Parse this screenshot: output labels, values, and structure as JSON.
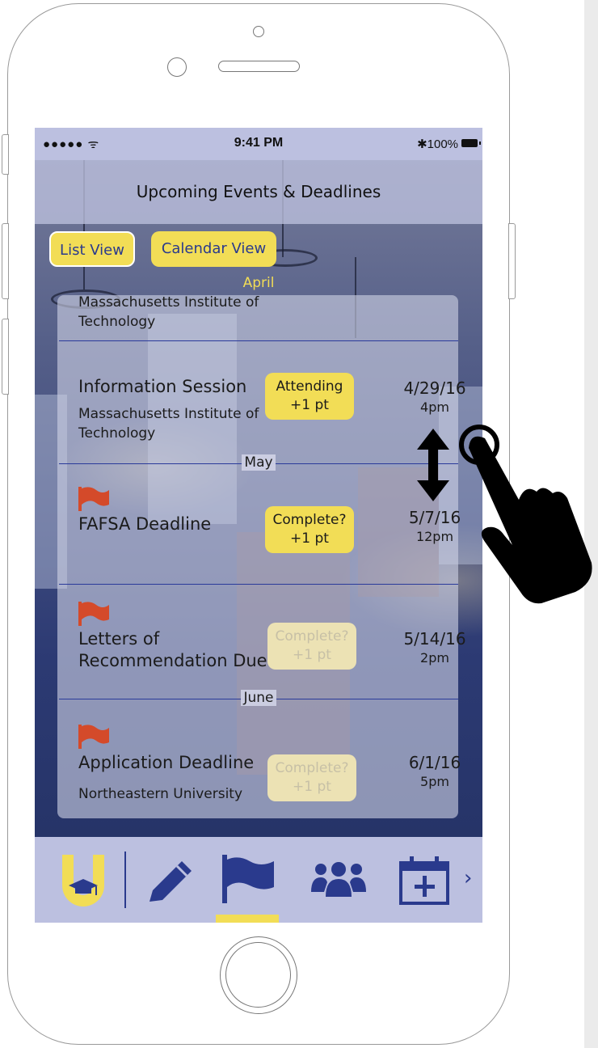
{
  "statusbar": {
    "signal": "●●●●● ᯤ",
    "time": "9:41 PM",
    "battery": "✱100%"
  },
  "header": {
    "title": "Upcoming Events & Deadlines"
  },
  "view_tabs": {
    "list": "List View",
    "calendar": "Calendar View"
  },
  "months": {
    "april": "April",
    "may": "May",
    "june": "June"
  },
  "events": [
    {
      "title": "",
      "university": "Massachusetts Institute of Technology",
      "action": "",
      "date": "",
      "time": ""
    },
    {
      "title": "Information Session",
      "university": "Massachusetts Institute of Technology",
      "action_line1": "Attending",
      "action_line2": "+1 pt",
      "date": "4/29/16",
      "time": "4pm"
    },
    {
      "title": "FAFSA Deadline",
      "university": "",
      "action_line1": "Complete?",
      "action_line2": "+1 pt",
      "date": "5/7/16",
      "time": "12pm"
    },
    {
      "title": "Letters of Recommendation Due",
      "university": "",
      "action_line1": "Complete?",
      "action_line2": "+1 pt",
      "date": "5/14/16",
      "time": "2pm"
    },
    {
      "title": "Application Deadline",
      "university": "Northeastern University",
      "action_line1": "Complete?",
      "action_line2": "+1 pt",
      "date": "6/1/16",
      "time": "5pm"
    }
  ],
  "colors": {
    "accent_yellow": "#f2dd56",
    "navy": "#2a3a8d",
    "flag_red": "#d44a2a",
    "nav_bg": "#bcc0e0"
  },
  "nav": {
    "items": [
      "logo-icon",
      "pencil-icon",
      "flag-icon",
      "group-icon",
      "calendar-add-icon"
    ],
    "more": "›"
  }
}
